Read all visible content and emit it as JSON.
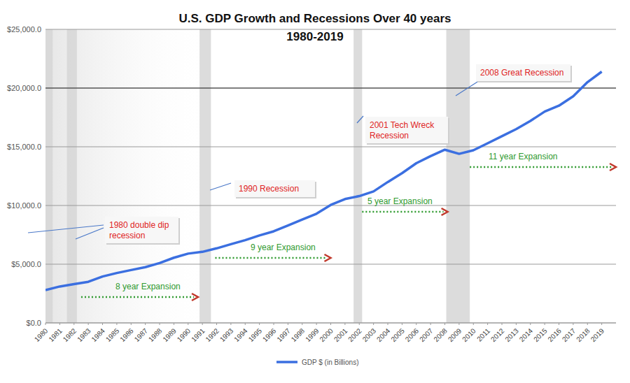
{
  "chart_data": {
    "type": "line",
    "title": "U.S. GDP Growth and Recessions Over 40 years",
    "subtitle": "1980-2019",
    "x": [
      1980,
      1981,
      1982,
      1983,
      1984,
      1985,
      1986,
      1987,
      1988,
      1989,
      1990,
      1991,
      1992,
      1993,
      1994,
      1995,
      1996,
      1997,
      1998,
      1999,
      2000,
      2001,
      2002,
      2003,
      2004,
      2005,
      2006,
      2007,
      2008,
      2009,
      2010,
      2011,
      2012,
      2013,
      2014,
      2015,
      2016,
      2017,
      2018,
      2019
    ],
    "series": [
      {
        "name": "GDP $ (in Billions)",
        "color": "#3b6fe0",
        "values": [
          2800,
          3100,
          3300,
          3500,
          3950,
          4250,
          4500,
          4750,
          5100,
          5550,
          5900,
          6050,
          6350,
          6700,
          7050,
          7450,
          7800,
          8300,
          8800,
          9300,
          10050,
          10550,
          10800,
          11200,
          12000,
          12750,
          13600,
          14200,
          14750,
          14400,
          14700,
          15300,
          15900,
          16500,
          17200,
          18000,
          18500,
          19300,
          20500,
          21400
        ]
      }
    ],
    "xlim": [
      1980,
      2020
    ],
    "xticks": [
      1980,
      1981,
      1982,
      1983,
      1984,
      1985,
      1986,
      1987,
      1988,
      1989,
      1990,
      1991,
      1992,
      1993,
      1994,
      1995,
      1996,
      1997,
      1998,
      1999,
      2000,
      2001,
      2002,
      2003,
      2004,
      2005,
      2006,
      2007,
      2008,
      2009,
      2010,
      2011,
      2012,
      2013,
      2014,
      2015,
      2016,
      2017,
      2018,
      2019
    ],
    "ylim": [
      0,
      25000
    ],
    "yticks": [
      {
        "value": 0,
        "label": "$0.0"
      },
      {
        "value": 5000,
        "label": "$5,000.0"
      },
      {
        "value": 10000,
        "label": "$10,000.0"
      },
      {
        "value": 15000,
        "label": "$15,000.0"
      },
      {
        "value": 20000,
        "label": "$20,000.0"
      },
      {
        "value": 25000,
        "label": "$25,000.0"
      }
    ],
    "grid": true,
    "legend": "bottom",
    "recessions": [
      {
        "start": 1980.0,
        "end": 1980.5
      },
      {
        "start": 1981.5,
        "end": 1982.2
      },
      {
        "start": 1990.8,
        "end": 1991.6
      },
      {
        "start": 2001.6,
        "end": 2002.2
      },
      {
        "start": 2008.1,
        "end": 2009.75
      }
    ],
    "annotations": [
      {
        "lines": [
          "1980 double dip",
          "recession"
        ]
      },
      {
        "lines": [
          "1990 Recession"
        ]
      },
      {
        "lines": [
          "2001 Tech Wreck",
          "Recession"
        ]
      },
      {
        "lines": [
          "2008 Great Recession"
        ]
      }
    ],
    "expansions": [
      {
        "label": "8 year Expansion",
        "start": 1982.5,
        "end": 1990.7
      },
      {
        "label": "9 year Expansion",
        "start": 1991.9,
        "end": 2000.0
      },
      {
        "label": "5 year Expansion",
        "start": 2002.2,
        "end": 2008.2
      },
      {
        "label": "11 year Expansion",
        "start": 2009.75,
        "end": 2020
      }
    ]
  }
}
